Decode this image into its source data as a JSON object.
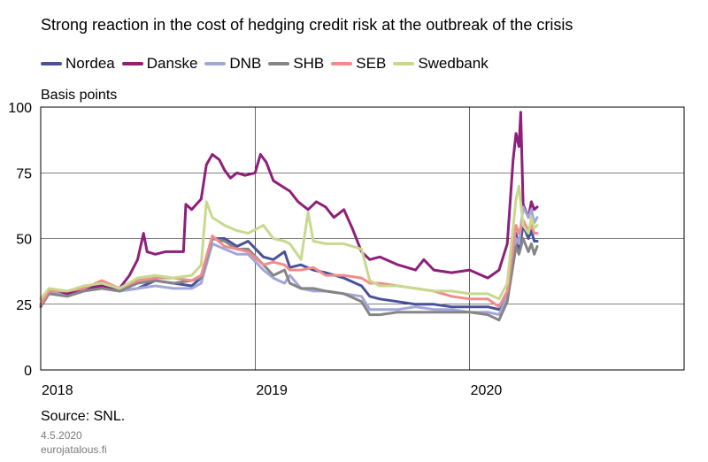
{
  "chart_data": {
    "type": "line",
    "title": "Strong reaction in the cost of hedging credit risk at the outbreak of the crisis",
    "ylabel": "Basis points",
    "xlabel": "",
    "ylim": [
      0,
      100
    ],
    "yticks": [
      0,
      25,
      50,
      75,
      100
    ],
    "xlim": [
      "2018-01-01",
      "2020-12-31"
    ],
    "xticks": [
      {
        "label": "2018",
        "date": "2018-01-01"
      },
      {
        "label": "2019",
        "date": "2019-01-01"
      },
      {
        "label": "2020",
        "date": "2020-01-01"
      }
    ],
    "grid": true,
    "legend_position": "top",
    "series": [
      {
        "name": "Nordea",
        "color": "#4a5197",
        "points": [
          [
            "2018-01-01",
            25
          ],
          [
            "2018-01-15",
            30
          ],
          [
            "2018-02-15",
            29
          ],
          [
            "2018-03-15",
            31
          ],
          [
            "2018-04-15",
            33
          ],
          [
            "2018-05-15",
            30
          ],
          [
            "2018-06-15",
            31
          ],
          [
            "2018-07-15",
            34
          ],
          [
            "2018-08-15",
            33
          ],
          [
            "2018-09-15",
            32
          ],
          [
            "2018-10-01",
            35
          ],
          [
            "2018-10-20",
            50
          ],
          [
            "2018-11-10",
            50
          ],
          [
            "2018-12-01",
            47
          ],
          [
            "2018-12-20",
            49
          ],
          [
            "2019-01-15",
            43
          ],
          [
            "2019-02-01",
            42
          ],
          [
            "2019-02-20",
            45
          ],
          [
            "2019-03-01",
            39
          ],
          [
            "2019-03-20",
            40
          ],
          [
            "2019-04-10",
            38
          ],
          [
            "2019-05-01",
            37
          ],
          [
            "2019-06-01",
            35
          ],
          [
            "2019-07-01",
            32
          ],
          [
            "2019-07-15",
            28
          ],
          [
            "2019-08-01",
            27
          ],
          [
            "2019-09-01",
            26
          ],
          [
            "2019-10-01",
            25
          ],
          [
            "2019-11-01",
            25
          ],
          [
            "2019-12-01",
            24
          ],
          [
            "2020-01-01",
            24
          ],
          [
            "2020-02-01",
            24
          ],
          [
            "2020-02-20",
            23
          ],
          [
            "2020-03-05",
            28
          ],
          [
            "2020-03-20",
            52
          ],
          [
            "2020-03-25",
            45
          ],
          [
            "2020-04-01",
            55
          ],
          [
            "2020-04-10",
            50
          ],
          [
            "2020-04-15",
            53
          ],
          [
            "2020-04-20",
            49
          ],
          [
            "2020-04-25",
            49
          ]
        ]
      },
      {
        "name": "Danske",
        "color": "#8e1f7a",
        "points": [
          [
            "2018-01-01",
            25
          ],
          [
            "2018-01-15",
            30
          ],
          [
            "2018-02-15",
            29
          ],
          [
            "2018-03-15",
            31
          ],
          [
            "2018-04-15",
            32
          ],
          [
            "2018-05-15",
            31
          ],
          [
            "2018-06-01",
            36
          ],
          [
            "2018-06-15",
            42
          ],
          [
            "2018-06-25",
            52
          ],
          [
            "2018-07-01",
            45
          ],
          [
            "2018-07-15",
            44
          ],
          [
            "2018-08-01",
            45
          ],
          [
            "2018-08-15",
            45
          ],
          [
            "2018-09-01",
            45
          ],
          [
            "2018-09-05",
            63
          ],
          [
            "2018-09-15",
            61
          ],
          [
            "2018-10-01",
            65
          ],
          [
            "2018-10-10",
            78
          ],
          [
            "2018-10-20",
            82
          ],
          [
            "2018-11-01",
            80
          ],
          [
            "2018-11-10",
            76
          ],
          [
            "2018-11-20",
            73
          ],
          [
            "2018-12-01",
            75
          ],
          [
            "2018-12-15",
            74
          ],
          [
            "2019-01-01",
            75
          ],
          [
            "2019-01-10",
            82
          ],
          [
            "2019-01-20",
            79
          ],
          [
            "2019-02-01",
            72
          ],
          [
            "2019-02-15",
            70
          ],
          [
            "2019-03-01",
            68
          ],
          [
            "2019-03-15",
            64
          ],
          [
            "2019-04-01",
            61
          ],
          [
            "2019-04-15",
            64
          ],
          [
            "2019-05-01",
            62
          ],
          [
            "2019-05-15",
            58
          ],
          [
            "2019-06-01",
            61
          ],
          [
            "2019-06-15",
            54
          ],
          [
            "2019-07-01",
            45
          ],
          [
            "2019-07-15",
            42
          ],
          [
            "2019-08-01",
            43
          ],
          [
            "2019-09-01",
            40
          ],
          [
            "2019-10-01",
            38
          ],
          [
            "2019-10-15",
            42
          ],
          [
            "2019-11-01",
            38
          ],
          [
            "2019-12-01",
            37
          ],
          [
            "2020-01-01",
            38
          ],
          [
            "2020-02-01",
            35
          ],
          [
            "2020-02-20",
            38
          ],
          [
            "2020-03-05",
            48
          ],
          [
            "2020-03-15",
            80
          ],
          [
            "2020-03-20",
            90
          ],
          [
            "2020-03-25",
            85
          ],
          [
            "2020-03-28",
            98
          ],
          [
            "2020-04-01",
            63
          ],
          [
            "2020-04-10",
            58
          ],
          [
            "2020-04-15",
            64
          ],
          [
            "2020-04-20",
            61
          ],
          [
            "2020-04-25",
            62
          ]
        ]
      },
      {
        "name": "DNB",
        "color": "#a3a7d8",
        "points": [
          [
            "2018-01-01",
            24
          ],
          [
            "2018-01-15",
            30
          ],
          [
            "2018-02-15",
            28
          ],
          [
            "2018-03-15",
            30
          ],
          [
            "2018-04-15",
            31
          ],
          [
            "2018-05-15",
            30
          ],
          [
            "2018-06-15",
            31
          ],
          [
            "2018-07-15",
            32
          ],
          [
            "2018-08-15",
            31
          ],
          [
            "2018-09-15",
            31
          ],
          [
            "2018-10-01",
            33
          ],
          [
            "2018-10-20",
            48
          ],
          [
            "2018-11-10",
            46
          ],
          [
            "2018-12-01",
            44
          ],
          [
            "2018-12-20",
            44
          ],
          [
            "2019-01-15",
            38
          ],
          [
            "2019-02-01",
            35
          ],
          [
            "2019-02-20",
            33
          ],
          [
            "2019-03-01",
            36
          ],
          [
            "2019-03-20",
            31
          ],
          [
            "2019-04-10",
            30
          ],
          [
            "2019-05-01",
            30
          ],
          [
            "2019-06-01",
            29
          ],
          [
            "2019-07-01",
            28
          ],
          [
            "2019-07-15",
            23
          ],
          [
            "2019-08-01",
            23
          ],
          [
            "2019-09-01",
            23
          ],
          [
            "2019-10-01",
            24
          ],
          [
            "2019-11-01",
            23
          ],
          [
            "2019-12-01",
            23
          ],
          [
            "2020-01-01",
            22
          ],
          [
            "2020-02-01",
            22
          ],
          [
            "2020-02-20",
            21
          ],
          [
            "2020-03-05",
            28
          ],
          [
            "2020-03-20",
            50
          ],
          [
            "2020-03-25",
            48
          ],
          [
            "2020-04-01",
            62
          ],
          [
            "2020-04-10",
            58
          ],
          [
            "2020-04-15",
            61
          ],
          [
            "2020-04-20",
            56
          ],
          [
            "2020-04-25",
            58
          ]
        ]
      },
      {
        "name": "SHB",
        "color": "#858585",
        "points": [
          [
            "2018-01-01",
            24
          ],
          [
            "2018-01-15",
            29
          ],
          [
            "2018-02-15",
            28
          ],
          [
            "2018-03-15",
            30
          ],
          [
            "2018-04-15",
            31
          ],
          [
            "2018-05-15",
            30
          ],
          [
            "2018-06-15",
            33
          ],
          [
            "2018-07-15",
            34
          ],
          [
            "2018-08-15",
            33
          ],
          [
            "2018-09-15",
            34
          ],
          [
            "2018-10-01",
            35
          ],
          [
            "2018-10-20",
            50
          ],
          [
            "2018-11-10",
            49
          ],
          [
            "2018-12-01",
            46
          ],
          [
            "2018-12-20",
            46
          ],
          [
            "2019-01-15",
            40
          ],
          [
            "2019-02-01",
            36
          ],
          [
            "2019-02-20",
            38
          ],
          [
            "2019-03-01",
            33
          ],
          [
            "2019-03-20",
            31
          ],
          [
            "2019-04-10",
            31
          ],
          [
            "2019-05-01",
            30
          ],
          [
            "2019-06-01",
            29
          ],
          [
            "2019-07-01",
            26
          ],
          [
            "2019-07-15",
            21
          ],
          [
            "2019-08-01",
            21
          ],
          [
            "2019-09-01",
            22
          ],
          [
            "2019-10-01",
            22
          ],
          [
            "2019-11-01",
            22
          ],
          [
            "2019-12-01",
            22
          ],
          [
            "2020-01-01",
            22
          ],
          [
            "2020-02-01",
            21
          ],
          [
            "2020-02-20",
            19
          ],
          [
            "2020-03-05",
            26
          ],
          [
            "2020-03-20",
            47
          ],
          [
            "2020-03-25",
            44
          ],
          [
            "2020-04-01",
            50
          ],
          [
            "2020-04-10",
            45
          ],
          [
            "2020-04-15",
            48
          ],
          [
            "2020-04-20",
            44
          ],
          [
            "2020-04-25",
            47
          ]
        ]
      },
      {
        "name": "SEB",
        "color": "#f08c8c",
        "points": [
          [
            "2018-01-01",
            25
          ],
          [
            "2018-01-15",
            30
          ],
          [
            "2018-02-15",
            30
          ],
          [
            "2018-03-15",
            31
          ],
          [
            "2018-04-15",
            34
          ],
          [
            "2018-05-15",
            31
          ],
          [
            "2018-06-15",
            34
          ],
          [
            "2018-07-15",
            35
          ],
          [
            "2018-08-15",
            35
          ],
          [
            "2018-09-15",
            34
          ],
          [
            "2018-10-01",
            36
          ],
          [
            "2018-10-20",
            51
          ],
          [
            "2018-11-10",
            47
          ],
          [
            "2018-12-01",
            46
          ],
          [
            "2018-12-20",
            45
          ],
          [
            "2019-01-15",
            40
          ],
          [
            "2019-02-01",
            41
          ],
          [
            "2019-02-20",
            40
          ],
          [
            "2019-03-01",
            38
          ],
          [
            "2019-03-20",
            38
          ],
          [
            "2019-04-10",
            39
          ],
          [
            "2019-05-01",
            36
          ],
          [
            "2019-06-01",
            36
          ],
          [
            "2019-07-01",
            35
          ],
          [
            "2019-07-15",
            33
          ],
          [
            "2019-08-01",
            33
          ],
          [
            "2019-09-01",
            32
          ],
          [
            "2019-10-01",
            31
          ],
          [
            "2019-11-01",
            30
          ],
          [
            "2019-12-01",
            28
          ],
          [
            "2020-01-01",
            27
          ],
          [
            "2020-02-01",
            27
          ],
          [
            "2020-02-20",
            24
          ],
          [
            "2020-03-05",
            30
          ],
          [
            "2020-03-20",
            55
          ],
          [
            "2020-03-25",
            52
          ],
          [
            "2020-04-01",
            57
          ],
          [
            "2020-04-10",
            53
          ],
          [
            "2020-04-15",
            55
          ],
          [
            "2020-04-20",
            52
          ],
          [
            "2020-04-25",
            52
          ]
        ]
      },
      {
        "name": "Swedbank",
        "color": "#c8d98e",
        "points": [
          [
            "2018-01-01",
            27
          ],
          [
            "2018-01-15",
            31
          ],
          [
            "2018-02-15",
            30
          ],
          [
            "2018-03-15",
            32
          ],
          [
            "2018-04-15",
            33
          ],
          [
            "2018-05-15",
            31
          ],
          [
            "2018-06-15",
            35
          ],
          [
            "2018-07-15",
            36
          ],
          [
            "2018-08-15",
            35
          ],
          [
            "2018-09-15",
            36
          ],
          [
            "2018-10-01",
            40
          ],
          [
            "2018-10-10",
            64
          ],
          [
            "2018-10-20",
            58
          ],
          [
            "2018-11-10",
            55
          ],
          [
            "2018-12-01",
            53
          ],
          [
            "2018-12-20",
            52
          ],
          [
            "2019-01-15",
            55
          ],
          [
            "2019-02-01",
            50
          ],
          [
            "2019-02-20",
            49
          ],
          [
            "2019-03-01",
            48
          ],
          [
            "2019-03-20",
            42
          ],
          [
            "2019-04-01",
            60
          ],
          [
            "2019-04-10",
            49
          ],
          [
            "2019-05-01",
            48
          ],
          [
            "2019-06-01",
            48
          ],
          [
            "2019-07-01",
            46
          ],
          [
            "2019-07-15",
            34
          ],
          [
            "2019-08-01",
            32
          ],
          [
            "2019-09-01",
            32
          ],
          [
            "2019-10-01",
            31
          ],
          [
            "2019-11-01",
            30
          ],
          [
            "2019-12-01",
            30
          ],
          [
            "2020-01-01",
            29
          ],
          [
            "2020-02-01",
            29
          ],
          [
            "2020-02-20",
            27
          ],
          [
            "2020-03-05",
            33
          ],
          [
            "2020-03-20",
            65
          ],
          [
            "2020-03-25",
            70
          ],
          [
            "2020-04-01",
            55
          ],
          [
            "2020-04-10",
            52
          ],
          [
            "2020-04-15",
            58
          ],
          [
            "2020-04-20",
            54
          ],
          [
            "2020-04-25",
            55
          ]
        ]
      }
    ]
  },
  "source": "Source: SNL.",
  "date": "4.5.2020",
  "site": "eurojatalous.fi"
}
